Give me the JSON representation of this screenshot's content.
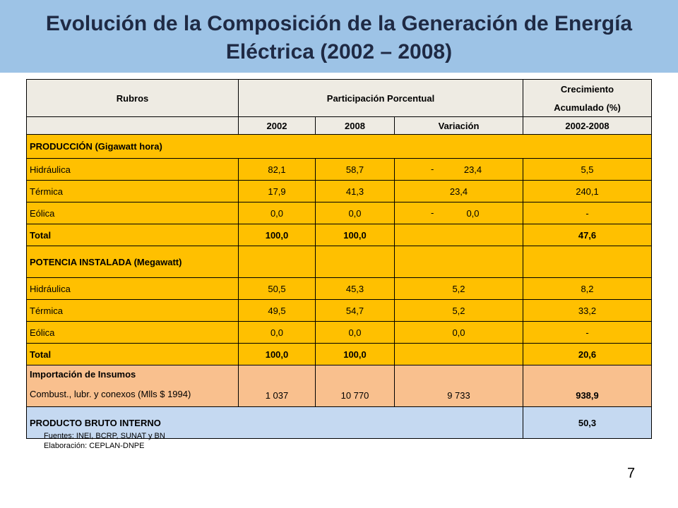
{
  "title": "Evolución de la Composición de la Generación de  Energía Eléctrica (2002 – 2008)",
  "table": {
    "header": {
      "rubros": "Rubros",
      "participacion": "Participación Porcentual",
      "crecimiento_line1": "Crecimiento",
      "crecimiento_line2": "Acumulado (%)",
      "col_2002": "2002",
      "col_2008": "2008",
      "col_variacion": "Variación",
      "col_periodo": "2002-2008"
    },
    "produccion": {
      "heading": "PRODUCCIÓN (Gigawatt hora)",
      "rows": [
        {
          "rubro": "Hidráulica",
          "v2002": "82,1",
          "v2008": "58,7",
          "var_sign": "-",
          "variacion": "23,4",
          "crec": "5,5"
        },
        {
          "rubro": "Térmica",
          "v2002": "17,9",
          "v2008": "41,3",
          "var_sign": "",
          "variacion": "23,4",
          "crec": "240,1"
        },
        {
          "rubro": "Eólica",
          "v2002": "0,0",
          "v2008": "0,0",
          "var_sign": "-",
          "variacion": "0,0",
          "crec": "-"
        }
      ],
      "total": {
        "rubro": "Total",
        "v2002": "100,0",
        "v2008": "100,0",
        "variacion": "",
        "crec": "47,6"
      }
    },
    "potencia": {
      "heading": "POTENCIA INSTALADA  (Megawatt)",
      "rows": [
        {
          "rubro": "Hidráulica",
          "v2002": "50,5",
          "v2008": "45,3",
          "variacion": "5,2",
          "crec": "8,2"
        },
        {
          "rubro": "Térmica",
          "v2002": "49,5",
          "v2008": "54,7",
          "variacion": "5,2",
          "crec": "33,2"
        },
        {
          "rubro": "Eólica",
          "v2002": "0,0",
          "v2008": "0,0",
          "variacion": "0,0",
          "crec": "-"
        }
      ],
      "total": {
        "rubro": "Total",
        "v2002": "100,0",
        "v2008": "100,0",
        "variacion": "",
        "crec": "20,6"
      }
    },
    "importacion": {
      "heading": "Importación de Insumos",
      "rubro": "Combust., lubr. y conexos (Mlls $ 1994)",
      "v2002": "1 037",
      "v2008": "10 770",
      "variacion": "9 733",
      "crec": "938,9"
    },
    "pbi": {
      "rubro": "PRODUCTO BRUTO INTERNO",
      "crec": "50,3"
    }
  },
  "sources": {
    "line1": "Fuentes:  INEI, BCRP, SUNAT y BN",
    "line2": "Elaboración: CEPLAN-DNPE"
  },
  "page_number": "7",
  "colors": {
    "title_band": "#9dc3e6",
    "header_bg": "#eeebe3",
    "yellow_rows": "#ffc000",
    "orange_rows": "#f9c08e",
    "blue_row": "#c5d9f1"
  }
}
